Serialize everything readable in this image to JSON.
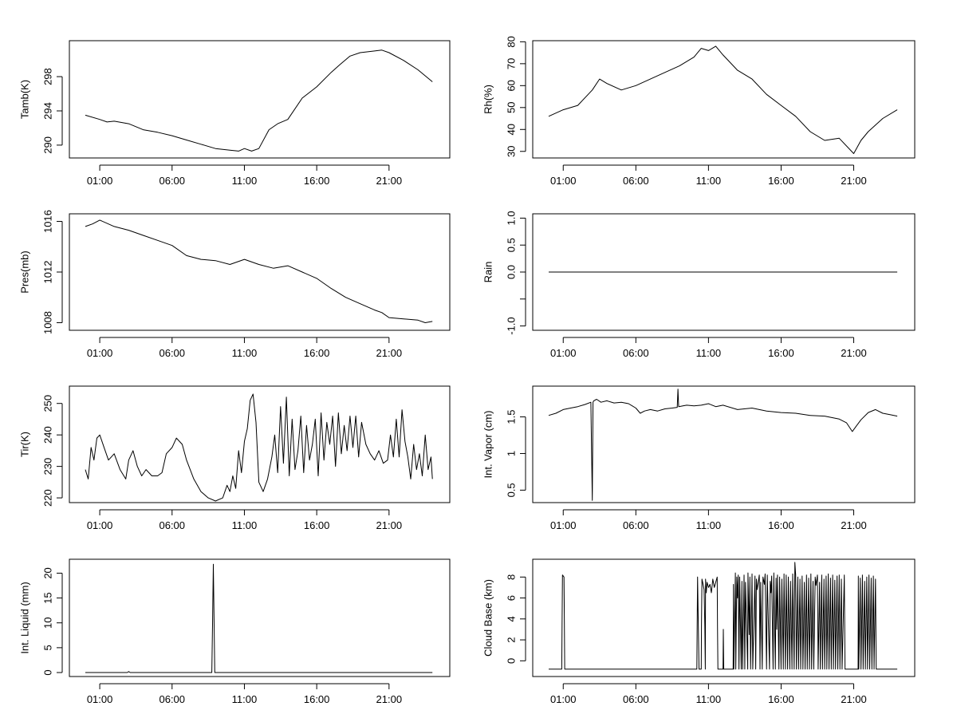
{
  "chart_data": [
    {
      "type": "line",
      "ylabel": "Tamb(K)",
      "x_ticks": [
        "01:00",
        "06:00",
        "11:00",
        "16:00",
        "21:00"
      ],
      "x_tick_hours": [
        1,
        6,
        11,
        16,
        21
      ],
      "xlim_hours": [
        -1.1,
        25.2
      ],
      "ylim": [
        288.5,
        302.2
      ],
      "y_ticks": [
        290,
        294,
        298
      ],
      "series": [
        {
          "x": [
            0,
            1,
            1.5,
            2,
            3,
            4,
            5,
            6,
            7,
            8,
            9,
            10,
            10.6,
            11,
            11.5,
            12,
            12.7,
            13.3,
            14,
            15,
            16,
            17,
            17.6,
            18.3,
            19,
            20,
            20.5,
            21,
            22,
            23,
            24
          ],
          "y": [
            293.5,
            293.0,
            292.7,
            292.8,
            292.5,
            291.8,
            291.5,
            291.1,
            290.6,
            290.1,
            289.6,
            289.4,
            289.3,
            289.6,
            289.3,
            289.6,
            291.8,
            292.5,
            293.0,
            295.5,
            296.8,
            298.5,
            299.4,
            300.4,
            300.8,
            301.0,
            301.1,
            300.8,
            299.9,
            298.8,
            297.4
          ]
        }
      ]
    },
    {
      "type": "line",
      "ylabel": "Rh(%)",
      "x_ticks": [
        "01:00",
        "06:00",
        "11:00",
        "16:00",
        "21:00"
      ],
      "x_tick_hours": [
        1,
        6,
        11,
        16,
        21
      ],
      "xlim_hours": [
        -1.1,
        25.2
      ],
      "ylim": [
        27,
        80.5
      ],
      "y_ticks": [
        30,
        40,
        50,
        60,
        70,
        80
      ],
      "series": [
        {
          "x": [
            0,
            1,
            2,
            3,
            3.5,
            4,
            5,
            6,
            7,
            8,
            9,
            10,
            10.5,
            11,
            11.5,
            12,
            13,
            14,
            15,
            16,
            17,
            18,
            19,
            20,
            21,
            21.5,
            22,
            23,
            24
          ],
          "y": [
            46,
            49,
            51,
            58,
            63,
            61,
            58,
            60,
            63,
            66,
            69,
            73,
            77,
            76,
            78,
            74,
            67,
            63,
            56,
            51,
            46,
            39,
            35,
            36,
            29,
            35,
            39,
            45,
            49
          ]
        }
      ]
    },
    {
      "type": "line",
      "ylabel": "Pres(mb)",
      "x_ticks": [
        "01:00",
        "06:00",
        "11:00",
        "16:00",
        "21:00"
      ],
      "x_tick_hours": [
        1,
        6,
        11,
        16,
        21
      ],
      "xlim_hours": [
        -1.1,
        25.2
      ],
      "ylim": [
        1007.4,
        1016.6
      ],
      "y_ticks": [
        1008,
        1012,
        1016
      ],
      "series": [
        {
          "x": [
            0,
            0.5,
            1,
            2,
            3,
            4,
            5,
            6,
            7,
            8,
            9,
            10,
            11,
            12,
            13,
            14,
            15,
            16,
            17,
            18,
            19,
            20,
            20.5,
            21,
            22,
            23,
            23.5,
            24
          ],
          "y": [
            1015.6,
            1015.8,
            1016.1,
            1015.6,
            1015.3,
            1014.9,
            1014.5,
            1014.1,
            1013.3,
            1013.0,
            1012.9,
            1012.6,
            1013.0,
            1012.6,
            1012.3,
            1012.5,
            1012.0,
            1011.5,
            1010.7,
            1010.0,
            1009.5,
            1009.0,
            1008.8,
            1008.4,
            1008.3,
            1008.2,
            1008.0,
            1008.1
          ]
        }
      ]
    },
    {
      "type": "line",
      "ylabel": "Rain",
      "x_ticks": [
        "01:00",
        "06:00",
        "11:00",
        "16:00",
        "21:00"
      ],
      "x_tick_hours": [
        1,
        6,
        11,
        16,
        21
      ],
      "xlim_hours": [
        -1.1,
        25.2
      ],
      "ylim": [
        -1.08,
        1.08
      ],
      "y_ticks": [
        -1.0,
        -0.5,
        0.0,
        0.5,
        1.0
      ],
      "y_tick_labels": [
        "-1.0",
        "",
        "0.0",
        "0.5",
        "1.0"
      ],
      "series": [
        {
          "x": [
            0,
            24
          ],
          "y": [
            0,
            0
          ]
        }
      ]
    },
    {
      "type": "line",
      "ylabel": "Tir(K)",
      "x_ticks": [
        "01:00",
        "06:00",
        "11:00",
        "16:00",
        "21:00"
      ],
      "x_tick_hours": [
        1,
        6,
        11,
        16,
        21
      ],
      "xlim_hours": [
        -1.1,
        25.2
      ],
      "ylim": [
        218.5,
        255.5
      ],
      "y_ticks": [
        220,
        230,
        240,
        250
      ],
      "series": [
        {
          "x": [
            0,
            0.2,
            0.4,
            0.6,
            0.8,
            1,
            1.3,
            1.6,
            2,
            2.4,
            2.8,
            3,
            3.3,
            3.6,
            3.9,
            4.2,
            4.6,
            5,
            5.3,
            5.6,
            6,
            6.3,
            6.7,
            7,
            7.5,
            8,
            8.5,
            9,
            9.5,
            9.8,
            10,
            10.2,
            10.4,
            10.6,
            10.8,
            11,
            11.2,
            11.4,
            11.6,
            11.8,
            12,
            12.3,
            12.6,
            12.9,
            13.1,
            13.3,
            13.5,
            13.7,
            13.9,
            14.1,
            14.3,
            14.5,
            14.7,
            14.9,
            15.1,
            15.3,
            15.5,
            15.7,
            15.9,
            16.1,
            16.3,
            16.5,
            16.7,
            16.9,
            17.1,
            17.3,
            17.5,
            17.7,
            17.9,
            18.1,
            18.3,
            18.5,
            18.7,
            18.9,
            19.1,
            19.4,
            19.7,
            20,
            20.3,
            20.6,
            20.9,
            21.1,
            21.3,
            21.5,
            21.7,
            21.9,
            22.1,
            22.3,
            22.5,
            22.7,
            22.9,
            23.1,
            23.3,
            23.5,
            23.7,
            23.9,
            24
          ],
          "y": [
            229,
            226,
            236,
            232,
            239,
            240,
            236,
            232,
            234,
            229,
            226,
            232,
            235,
            230,
            227,
            229,
            227,
            227,
            228,
            234,
            236,
            239,
            237,
            232,
            226,
            222,
            220,
            219,
            220,
            224,
            222,
            227,
            223,
            235,
            228,
            238,
            242,
            251,
            253,
            244,
            225,
            222,
            226,
            233,
            240,
            228,
            249,
            231,
            252,
            227,
            245,
            229,
            235,
            246,
            228,
            243,
            232,
            237,
            245,
            227,
            247,
            232,
            244,
            237,
            246,
            230,
            247,
            234,
            243,
            235,
            246,
            236,
            246,
            233,
            244,
            237,
            234,
            232,
            235,
            231,
            232,
            240,
            233,
            245,
            233,
            248,
            238,
            233,
            226,
            237,
            229,
            234,
            227,
            240,
            229,
            233,
            226
          ]
        }
      ]
    },
    {
      "type": "line",
      "ylabel": "Int. Vapor (cm)",
      "x_ticks": [
        "01:00",
        "06:00",
        "11:00",
        "16:00",
        "21:00"
      ],
      "x_tick_hours": [
        1,
        6,
        11,
        16,
        21
      ],
      "xlim_hours": [
        -1.1,
        25.2
      ],
      "ylim": [
        0.33,
        1.92
      ],
      "y_ticks": [
        0.5,
        1.0,
        1.5
      ],
      "series": [
        {
          "x": [
            0,
            0.5,
            1,
            1.5,
            2,
            2.5,
            2.9,
            2.95,
            3.0,
            3.05,
            3.1,
            3.3,
            3.6,
            4,
            4.5,
            5,
            5.5,
            6,
            6.3,
            6.6,
            7,
            7.5,
            8,
            8.5,
            8.85,
            8.9,
            8.95,
            9.5,
            10,
            10.5,
            11,
            11.5,
            12,
            13,
            14,
            15,
            16,
            17,
            18,
            19,
            20,
            20.5,
            20.9,
            21.2,
            21.5,
            22,
            22.5,
            23,
            23.5,
            24
          ],
          "y": [
            1.52,
            1.55,
            1.6,
            1.62,
            1.64,
            1.67,
            1.7,
            1.03,
            0.36,
            1.7,
            1.72,
            1.74,
            1.7,
            1.72,
            1.69,
            1.7,
            1.68,
            1.62,
            1.55,
            1.58,
            1.6,
            1.58,
            1.61,
            1.62,
            1.63,
            1.88,
            1.64,
            1.66,
            1.65,
            1.66,
            1.68,
            1.64,
            1.66,
            1.6,
            1.62,
            1.58,
            1.56,
            1.55,
            1.52,
            1.51,
            1.47,
            1.42,
            1.3,
            1.38,
            1.46,
            1.56,
            1.6,
            1.55,
            1.53,
            1.51
          ]
        }
      ]
    },
    {
      "type": "line",
      "ylabel": "Int. Liquid (mm)",
      "x_ticks": [
        "01:00",
        "06:00",
        "11:00",
        "16:00",
        "21:00"
      ],
      "x_tick_hours": [
        1,
        6,
        11,
        16,
        21
      ],
      "xlim_hours": [
        -1.1,
        25.2
      ],
      "ylim": [
        -0.8,
        22.8
      ],
      "y_ticks": [
        0,
        5,
        10,
        15,
        20
      ],
      "series": [
        {
          "x": [
            0,
            2.9,
            3.0,
            3.1,
            8.75,
            8.8,
            8.85,
            8.9,
            8.95,
            9.0,
            24
          ],
          "y": [
            0,
            0,
            0.2,
            0,
            0,
            10.8,
            21.8,
            10.8,
            0,
            0,
            0
          ]
        }
      ]
    },
    {
      "type": "line",
      "ylabel": "Cloud Base (km)",
      "x_ticks": [
        "01:00",
        "06:00",
        "11:00",
        "16:00",
        "21:00"
      ],
      "x_tick_hours": [
        1,
        6,
        11,
        16,
        21
      ],
      "xlim_hours": [
        -1.1,
        25.2
      ],
      "ylim": [
        -1.5,
        9.7
      ],
      "y_ticks": [
        0,
        2,
        4,
        6,
        8
      ],
      "series": [
        {
          "x": [
            0,
            0.9,
            0.92,
            0.95,
            1.05,
            1.08,
            1.1,
            10.2,
            10.22,
            10.25,
            10.35,
            10.5,
            10.52,
            10.55,
            10.6,
            10.7,
            10.75,
            10.78,
            10.8,
            10.85,
            10.9,
            11.0,
            11.1,
            11.2,
            11.3,
            11.4,
            11.6,
            11.62,
            11.65,
            12.0,
            12.02,
            12.05,
            12.7,
            12.72,
            12.75,
            12.85,
            12.88,
            12.95,
            13.0,
            13.05,
            13.1,
            13.15,
            13.25,
            13.3,
            13.35,
            13.45,
            13.5,
            13.55,
            13.7,
            13.72,
            13.8,
            13.85,
            13.9,
            14.0,
            14.05,
            14.2,
            14.25,
            14.3,
            14.35,
            14.5,
            14.55,
            14.6,
            14.7,
            14.75,
            14.85,
            14.9,
            15.0,
            15.05,
            15.2,
            15.25,
            15.3,
            15.35,
            15.45,
            15.5,
            15.6,
            15.65,
            15.7,
            15.75,
            15.85,
            15.9,
            16.0,
            16.05,
            16.15,
            16.2,
            16.3,
            16.35,
            16.45,
            16.5,
            16.6,
            16.65,
            16.75,
            16.8,
            16.9,
            16.95,
            17.0,
            17.05,
            17.15,
            17.2,
            17.3,
            17.35,
            17.45,
            17.5,
            17.6,
            17.65,
            17.75,
            17.8,
            17.9,
            17.95,
            18.05,
            18.1,
            18.2,
            18.25,
            18.35,
            18.4,
            18.5,
            18.55,
            18.65,
            18.7,
            18.8,
            18.85,
            18.95,
            19.0,
            19.1,
            19.15,
            19.25,
            19.3,
            19.4,
            19.45,
            19.55,
            19.6,
            19.7,
            19.75,
            19.85,
            19.9,
            20.0,
            20.05,
            20.15,
            20.2,
            20.35,
            20.4,
            21.3,
            21.32,
            21.35,
            21.45,
            21.5,
            21.6,
            21.65,
            21.75,
            21.8,
            21.9,
            21.95,
            22.05,
            22.1,
            22.2,
            22.25,
            22.35,
            22.4,
            22.5,
            22.55,
            24
          ],
          "y": [
            -0.8,
            -0.8,
            3.5,
            8.2,
            8.0,
            3.5,
            -0.8,
            -0.8,
            3.5,
            8.0,
            -0.8,
            -0.8,
            3.5,
            7.8,
            7.5,
            6.8,
            3.3,
            -0.8,
            7.8,
            6.5,
            7.5,
            7.0,
            7.3,
            6.5,
            7.8,
            7.0,
            8.0,
            3.2,
            -0.8,
            -0.8,
            3.0,
            -0.8,
            -0.8,
            7.3,
            -0.8,
            8.4,
            -0.8,
            8.0,
            6.0,
            8.2,
            -0.8,
            8.0,
            -0.8,
            7.6,
            -0.8,
            8.2,
            -0.8,
            7.5,
            -0.8,
            8.4,
            2.5,
            8.0,
            -0.8,
            8.3,
            -0.8,
            8.1,
            -0.8,
            7.8,
            6.8,
            8.2,
            -0.8,
            7.5,
            -0.8,
            8.0,
            7.3,
            8.3,
            -0.8,
            8.2,
            -0.8,
            7.6,
            6.5,
            8.1,
            -0.8,
            8.4,
            -0.8,
            7.9,
            3.0,
            8.2,
            -0.8,
            8.0,
            -0.8,
            7.8,
            -0.8,
            8.3,
            -0.8,
            8.2,
            -0.8,
            8.0,
            -0.8,
            7.6,
            -0.8,
            8.3,
            -0.8,
            9.4,
            8.2,
            -0.8,
            8.0,
            -0.8,
            7.8,
            -0.8,
            8.1,
            -0.8,
            7.5,
            -0.8,
            8.2,
            -0.8,
            7.9,
            -0.8,
            8.3,
            -0.8,
            7.6,
            -0.8,
            8.0,
            7.2,
            8.2,
            -0.8,
            7.5,
            -0.8,
            8.2,
            -0.8,
            7.8,
            -0.8,
            8.1,
            -0.8,
            8.3,
            -0.8,
            7.9,
            -0.8,
            8.2,
            -0.8,
            7.7,
            -0.8,
            8.1,
            -0.8,
            8.2,
            -0.8,
            7.8,
            -0.8,
            8.2,
            -0.8,
            -0.8,
            8.1,
            -0.8,
            7.9,
            -0.8,
            8.2,
            -0.8,
            7.6,
            -0.8,
            8.0,
            -0.8,
            8.2,
            -0.8,
            7.9,
            -0.8,
            8.1,
            -0.8,
            7.8,
            -0.8,
            -0.8
          ]
        }
      ]
    }
  ]
}
